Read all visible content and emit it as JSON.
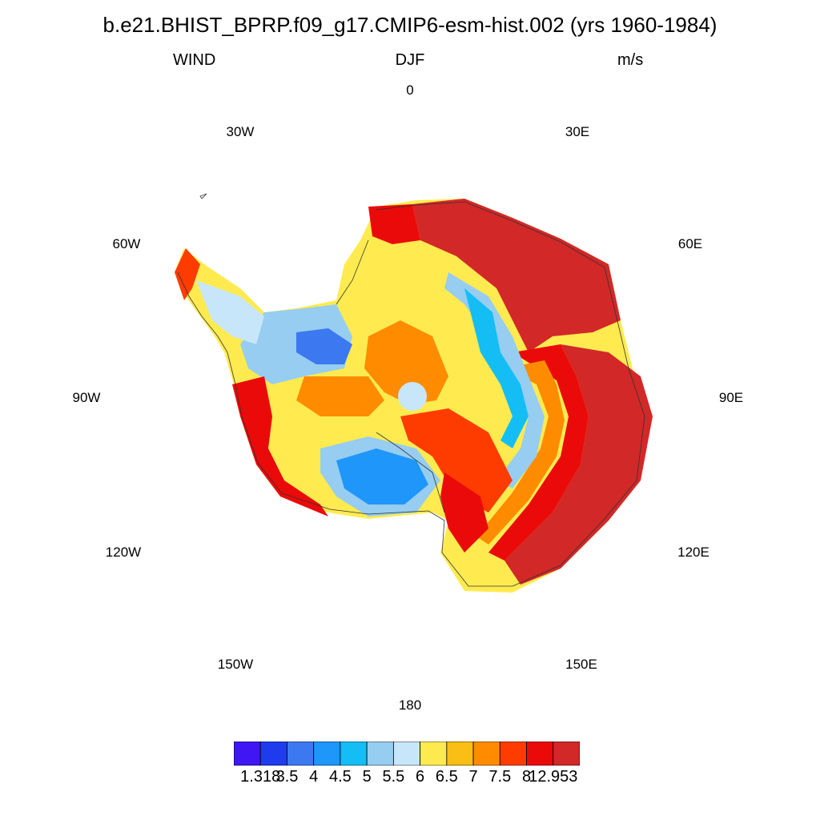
{
  "header": {
    "title": "b.e21.BHIST_BPRP.f09_g17.CMIP6-esm-hist.002 (yrs 1960-1984)",
    "left": "WIND",
    "center": "DJF",
    "right": "m/s"
  },
  "map": {
    "projection": "south-polar-stereographic",
    "variable": "WIND",
    "region": "Antarctica",
    "coastline_color": "#333333",
    "longitude_labels": {
      "top": "0",
      "top_right": "30E",
      "right_upper": "60E",
      "right": "90E",
      "right_lower": "120E",
      "bottom_right": "150E",
      "bottom": "180",
      "bottom_left": "150W",
      "left_lower": "120W",
      "left": "90W",
      "left_upper": "60W",
      "top_left": "30W"
    }
  },
  "colorbar": {
    "colors": [
      "#4016f5",
      "#1e3ced",
      "#3c78f0",
      "#1e96fa",
      "#14bef5",
      "#96cdf0",
      "#c8e6fa",
      "#ffeb50",
      "#fabe14",
      "#ff8c00",
      "#ff3c00",
      "#eb0a0a",
      "#d22828"
    ],
    "labels": [
      "1.318",
      "3.5",
      "4",
      "4.5",
      "5",
      "5.5",
      "6",
      "6.5",
      "7",
      "7.5",
      "8",
      "12.953"
    ]
  }
}
